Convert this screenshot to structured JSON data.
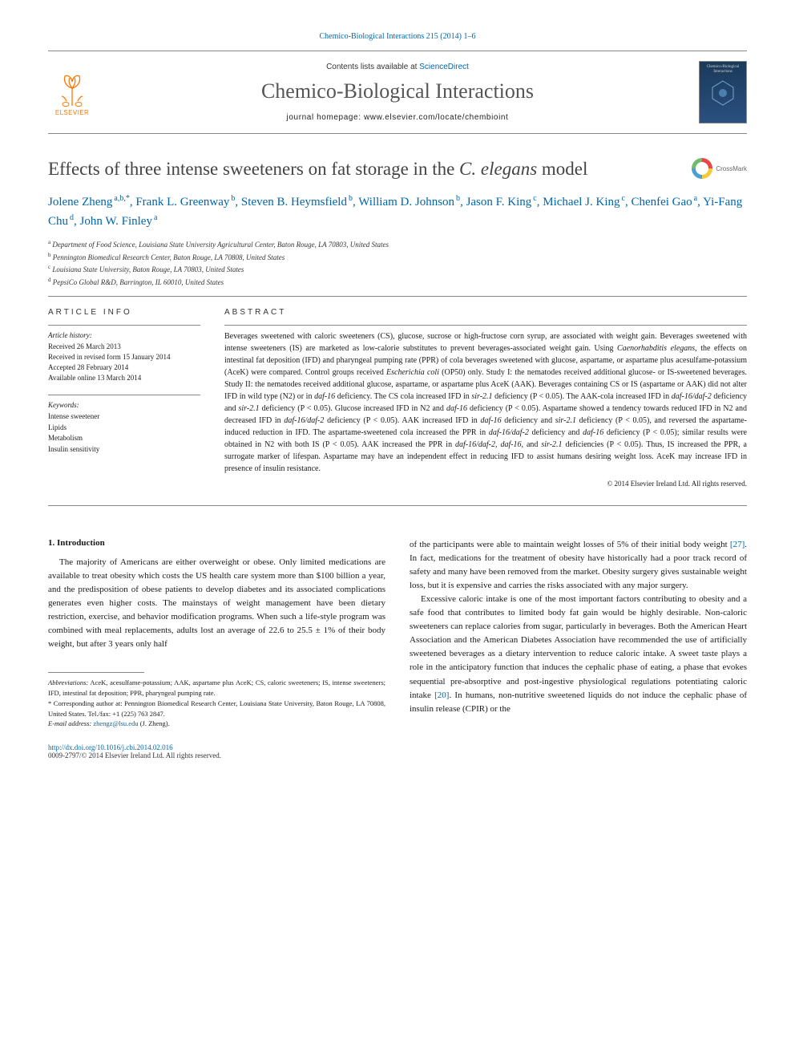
{
  "citation": "Chemico-Biological Interactions 215 (2014) 1–6",
  "masthead": {
    "contents_prefix": "Contents lists available at ",
    "contents_link": "ScienceDirect",
    "journal_title": "Chemico-Biological Interactions",
    "homepage": "journal homepage: www.elsevier.com/locate/chembioint",
    "publisher_word": "ELSEVIER",
    "publisher_logo_color": "#ff7700",
    "cover": {
      "line1": "Chemico-Biological",
      "line2": "Interactions"
    }
  },
  "crossmark_label": "CrossMark",
  "title": {
    "prefix": "Effects of three intense sweeteners on fat storage in the ",
    "italic": "C. elegans",
    "suffix": " model"
  },
  "authors": [
    {
      "name": "Jolene Zheng",
      "aff": "a,b,*"
    },
    {
      "name": "Frank L. Greenway",
      "aff": "b"
    },
    {
      "name": "Steven B. Heymsfield",
      "aff": "b"
    },
    {
      "name": "William D. Johnson",
      "aff": "b"
    },
    {
      "name": "Jason F. King",
      "aff": "c"
    },
    {
      "name": "Michael J. King",
      "aff": "c"
    },
    {
      "name": "Chenfei Gao",
      "aff": "a"
    },
    {
      "name": "Yi-Fang Chu",
      "aff": "d"
    },
    {
      "name": "John W. Finley",
      "aff": "a"
    }
  ],
  "affiliations": [
    {
      "key": "a",
      "text": "Department of Food Science, Louisiana State University Agricultural Center, Baton Rouge, LA 70803, United States"
    },
    {
      "key": "b",
      "text": "Pennington Biomedical Research Center, Baton Rouge, LA 70808, United States"
    },
    {
      "key": "c",
      "text": "Louisiana State University, Baton Rouge, LA 70803, United States"
    },
    {
      "key": "d",
      "text": "PepsiCo Global R&D, Barrington, IL 60010, United States"
    }
  ],
  "article_info": {
    "head": "ARTICLE INFO",
    "history_label": "Article history:",
    "history": [
      "Received 26 March 2013",
      "Received in revised form 15 January 2014",
      "Accepted 28 February 2014",
      "Available online 13 March 2014"
    ],
    "keywords_label": "Keywords:",
    "keywords": [
      "Intense sweetener",
      "Lipids",
      "Metabolism",
      "Insulin sensitivity"
    ]
  },
  "abstract": {
    "head": "ABSTRACT",
    "text_1": "Beverages sweetened with caloric sweeteners (CS), glucose, sucrose or high-fructose corn syrup, are associated with weight gain. Beverages sweetened with intense sweeteners (IS) are marketed as low-calorie substitutes to prevent beverages-associated weight gain. Using ",
    "text_ital_1": "Caenorhabditis elegans",
    "text_2": ", the effects on intestinal fat deposition (IFD) and pharyngeal pumping rate (PPR) of cola beverages sweetened with glucose, aspartame, or aspartame plus acesulfame-potassium (AceK) were compared. Control groups received ",
    "text_ital_2": "Escherichia coli",
    "text_3": " (OP50) only. Study I: the nematodes received additional glucose- or IS-sweetened beverages. Study II: the nematodes received additional glucose, aspartame, or aspartame plus AceK (AAK). Beverages containing CS or IS (aspartame or AAK) did not alter IFD in wild type (N2) or in ",
    "text_ital_3": "daf-16",
    "text_4": " deficiency. The CS cola increased IFD in ",
    "text_ital_4": "sir-2.1",
    "text_5": " deficiency (P < 0.05). The AAK-cola increased IFD in ",
    "text_ital_5": "daf-16/daf-2",
    "text_6": " deficiency and ",
    "text_ital_6": "sir-2.1",
    "text_7": " deficiency (P < 0.05). Glucose increased IFD in N2 and ",
    "text_ital_7": "daf-16",
    "text_8": " deficiency (P < 0.05). Aspartame showed a tendency towards reduced IFD in N2 and decreased IFD in ",
    "text_ital_8": "daf-16/daf-2",
    "text_9": " deficiency (P < 0.05). AAK increased IFD in ",
    "text_ital_9": "daf-16",
    "text_10": " deficiency and ",
    "text_ital_10": "sir-2.1",
    "text_11": " deficiency (P < 0.05), and reversed the aspartame-induced reduction in IFD. The aspartame-sweetened cola increased the PPR in ",
    "text_ital_11": "daf-16/daf-2",
    "text_12": " deficiency and ",
    "text_ital_12": "daf-16",
    "text_13": " deficiency (P < 0.05); similar results were obtained in N2 with both IS (P < 0.05). AAK increased the PPR in ",
    "text_ital_13": "daf-16/daf-2, daf-16",
    "text_14": ", and ",
    "text_ital_14": "sir-2.1",
    "text_15": " deficiencies (P < 0.05). Thus, IS increased the PPR, a surrogate marker of lifespan. Aspartame may have an independent effect in reducing IFD to assist humans desiring weight loss. AceK may increase IFD in presence of insulin resistance.",
    "copyright": "© 2014 Elsevier Ireland Ltd. All rights reserved."
  },
  "section1_head": "1. Introduction",
  "col_left_p1": "The majority of Americans are either overweight or obese. Only limited medications are available to treat obesity which costs the US health care system more than $100 billion a year, and the predisposition of obese patients to develop diabetes and its associated complications generates even higher costs. The mainstays of weight management have been dietary restriction, exercise, and behavior modification programs. When such a life-style program was combined with meal replacements, adults lost an average of 22.6 to 25.5 ± 1% of their body weight, but after 3 years only half",
  "col_right_p1_a": "of the participants were able to maintain weight losses of 5% of their initial body weight ",
  "col_right_p1_ref": "[27]",
  "col_right_p1_b": ". In fact, medications for the treatment of obesity have historically had a poor track record of safety and many have been removed from the market. Obesity surgery gives sustainable weight loss, but it is expensive and carries the risks associated with any major surgery.",
  "col_right_p2_a": "Excessive caloric intake is one of the most important factors contributing to obesity and a safe food that contributes to limited body fat gain would be highly desirable. Non-caloric sweeteners can replace calories from sugar, particularly in beverages. Both the American Heart Association and the American Diabetes Association have recommended the use of artificially sweetened beverages as a dietary intervention to reduce caloric intake. A sweet taste plays a role in the anticipatory function that induces the cephalic phase of eating, a phase that evokes sequential pre-absorptive and post-ingestive physiological regulations potentiating caloric intake ",
  "col_right_p2_ref": "[20]",
  "col_right_p2_b": ". In humans, non-nutritive sweetened liquids do not induce the cephalic phase of insulin release (CPIR) or the",
  "footnotes": {
    "abbrev_label": "Abbreviations:",
    "abbrev_text": " AceK, acesulfame-potassium; AAK, aspartame plus AceK; CS, caloric sweeteners; IS, intense sweeteners; IFD, intestinal fat deposition; PPR, pharyngeal pumping rate.",
    "corr_marker": "*",
    "corr_text": " Corresponding author at: Pennington Biomedical Research Center, Louisiana State University, Baton Rouge, LA 70808, United States. Tel./fax: +1 (225) 763 2847.",
    "email_label": "E-mail address:",
    "email": "zhengz@lsu.edu",
    "email_suffix": " (J. Zheng)."
  },
  "footer": {
    "doi": "http://dx.doi.org/10.1016/j.cbi.2014.02.016",
    "rights": "0009-2797/© 2014 Elsevier Ireland Ltd. All rights reserved."
  },
  "colors": {
    "link": "#0066aa",
    "text": "#1a1a1a",
    "masthead_grey": "#555555",
    "rule": "#888888"
  }
}
